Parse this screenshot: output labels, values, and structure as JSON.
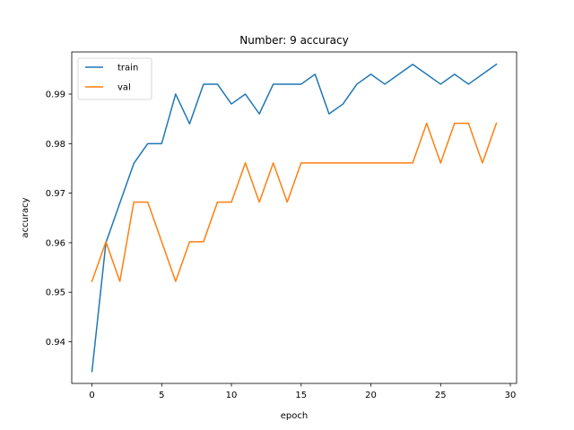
{
  "chart_data": {
    "type": "line",
    "title": "Number: 9 accuracy",
    "xlabel": "epoch",
    "ylabel": "accuracy",
    "xlim": [
      -1.45,
      30.45
    ],
    "ylim": [
      0.9316,
      0.9985
    ],
    "xticks": [
      0,
      5,
      10,
      15,
      20,
      25,
      30
    ],
    "yticks": [
      0.94,
      0.95,
      0.96,
      0.97,
      0.98,
      0.99
    ],
    "grid": false,
    "legend_position": "top-left",
    "x": [
      0,
      1,
      2,
      3,
      4,
      5,
      6,
      7,
      8,
      9,
      10,
      11,
      12,
      13,
      14,
      15,
      16,
      17,
      18,
      19,
      20,
      21,
      22,
      23,
      24,
      25,
      26,
      27,
      28,
      29
    ],
    "series": [
      {
        "name": "train",
        "color": "#1f77b4",
        "values": [
          0.934,
          0.96,
          0.968,
          0.976,
          0.98,
          0.98,
          0.99,
          0.984,
          0.992,
          0.992,
          0.988,
          0.99,
          0.986,
          0.992,
          0.992,
          0.992,
          0.994,
          0.986,
          0.988,
          0.992,
          0.994,
          0.992,
          0.994,
          0.996,
          0.994,
          0.992,
          0.994,
          0.992,
          0.994,
          0.996
        ]
      },
      {
        "name": "val",
        "color": "#ff7f0e",
        "values": [
          0.9522,
          0.9602,
          0.9522,
          0.9682,
          0.9682,
          0.9602,
          0.9522,
          0.9602,
          0.9602,
          0.9682,
          0.9682,
          0.9761,
          0.9682,
          0.9761,
          0.9682,
          0.9761,
          0.9761,
          0.9761,
          0.9761,
          0.9761,
          0.9761,
          0.9761,
          0.9761,
          0.9761,
          0.9841,
          0.9761,
          0.9841,
          0.9841,
          0.9761,
          0.9841
        ]
      }
    ]
  }
}
